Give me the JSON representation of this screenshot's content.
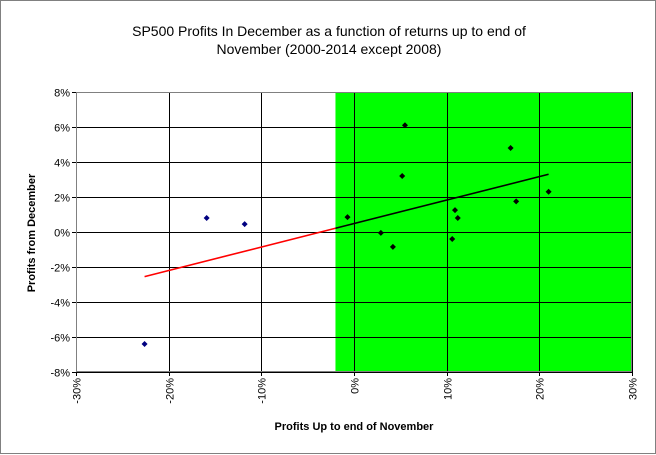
{
  "chart_data": {
    "type": "scatter",
    "title_lines": [
      "SP500 Profits In December as a function of returns up to end of",
      "November (2000-2014 except 2008)"
    ],
    "xlabel": "Profits Up to end of November",
    "ylabel": "Profits from December",
    "xlim": [
      -0.3,
      0.3
    ],
    "ylim": [
      -0.08,
      0.08
    ],
    "x_ticks": [
      -0.3,
      -0.2,
      -0.1,
      0.0,
      0.1,
      0.2,
      0.3
    ],
    "x_tick_labels": [
      "-30%",
      "-20%",
      "-10%",
      "0%",
      "10%",
      "20%",
      "30%"
    ],
    "y_ticks": [
      0.08,
      0.06,
      0.04,
      0.02,
      0.0,
      -0.02,
      -0.04,
      -0.06,
      -0.08
    ],
    "y_tick_labels": [
      "8%",
      "6%",
      "4%",
      "2%",
      "0%",
      "-2%",
      "-4%",
      "-6%",
      "-8%"
    ],
    "grid": {
      "vertical": true,
      "horizontal": true
    },
    "highlight_region": {
      "x_from": -0.02,
      "x_to": 0.3,
      "color": "#00ff00"
    },
    "series": [
      {
        "marker_color": "#000080",
        "points": [
          {
            "x": -0.226,
            "y": -0.064
          },
          {
            "x": -0.159,
            "y": 0.008
          },
          {
            "x": -0.118,
            "y": 0.0045
          }
        ]
      },
      {
        "marker_color": "#000000",
        "points": [
          {
            "x": -0.007,
            "y": 0.0085
          },
          {
            "x": 0.029,
            "y": -0.0005
          },
          {
            "x": 0.042,
            "y": -0.0085
          },
          {
            "x": 0.052,
            "y": 0.032
          },
          {
            "x": 0.055,
            "y": 0.061
          },
          {
            "x": 0.106,
            "y": -0.004
          },
          {
            "x": 0.109,
            "y": 0.0125
          },
          {
            "x": 0.112,
            "y": 0.008
          },
          {
            "x": 0.169,
            "y": 0.048
          },
          {
            "x": 0.175,
            "y": 0.0175
          },
          {
            "x": 0.21,
            "y": 0.023
          }
        ]
      }
    ],
    "trendline": {
      "x_start": -0.226,
      "y_start": -0.0255,
      "x_end": 0.21,
      "y_end": 0.033,
      "split_x": -0.02,
      "color_left": "#ff0000",
      "color_right": "#000000"
    },
    "colors": {
      "frame_border": "#808080",
      "plot_border": "#808080",
      "grid": "#000000",
      "plot_background": "#ffffff"
    }
  }
}
